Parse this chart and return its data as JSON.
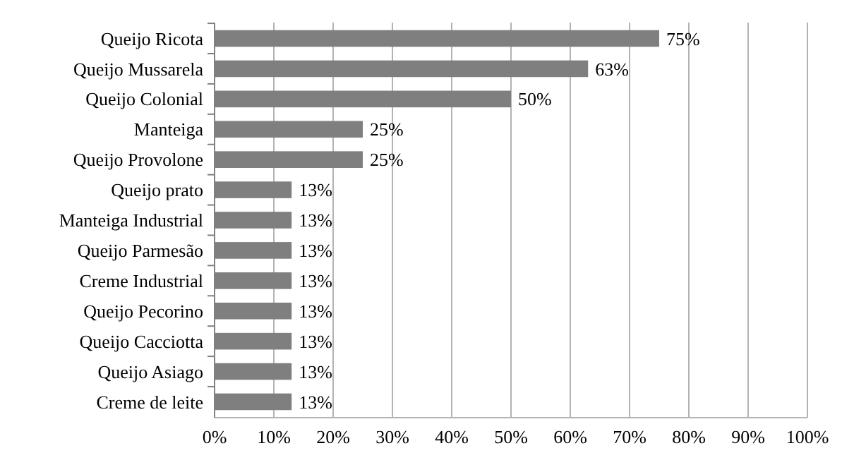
{
  "chart_data": {
    "type": "bar",
    "orientation": "horizontal",
    "categories": [
      "Queijo Ricota",
      "Queijo Mussarela",
      "Queijo Colonial",
      "Manteiga",
      "Queijo Provolone",
      "Queijo prato",
      "Manteiga Industrial",
      "Queijo Parmesão",
      "Creme Industrial",
      "Queijo Pecorino",
      "Queijo Cacciotta",
      "Queijo Asiago",
      "Creme de leite"
    ],
    "values": [
      75,
      63,
      50,
      25,
      25,
      13,
      13,
      13,
      13,
      13,
      13,
      13,
      13
    ],
    "value_labels": [
      "75%",
      "63%",
      "50%",
      "25%",
      "25%",
      "13%",
      "13%",
      "13%",
      "13%",
      "13%",
      "13%",
      "13%",
      "13%"
    ],
    "color": "#7f7f7f",
    "xlim": [
      0,
      100
    ],
    "xticks": [
      {
        "value": 0,
        "label": "0%"
      },
      {
        "value": 10,
        "label": "10%"
      },
      {
        "value": 20,
        "label": "20%"
      },
      {
        "value": 30,
        "label": "30%"
      },
      {
        "value": 40,
        "label": "40%"
      },
      {
        "value": 50,
        "label": "50%"
      },
      {
        "value": 60,
        "label": "60%"
      },
      {
        "value": 70,
        "label": "70%"
      },
      {
        "value": 80,
        "label": "80%"
      },
      {
        "value": 90,
        "label": "90%"
      },
      {
        "value": 100,
        "label": "100%"
      }
    ],
    "grid": "x"
  }
}
